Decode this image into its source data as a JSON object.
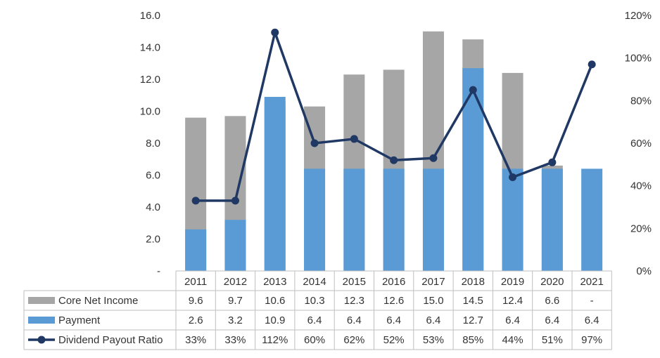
{
  "chart_data": {
    "type": "bar",
    "categories": [
      "2011",
      "2012",
      "2013",
      "2014",
      "2015",
      "2016",
      "2017",
      "2018",
      "2019",
      "2020",
      "2021"
    ],
    "series": [
      {
        "name": "Core Net Income",
        "kind": "bar",
        "color": "#a6a6a6",
        "values": [
          9.6,
          9.7,
          10.6,
          10.3,
          12.3,
          12.6,
          15.0,
          14.5,
          12.4,
          6.6,
          null
        ],
        "labels": [
          "9.6",
          "9.7",
          "10.6",
          "10.3",
          "12.3",
          "12.6",
          "15.0",
          "14.5",
          "12.4",
          "6.6",
          "-"
        ]
      },
      {
        "name": "Payment",
        "kind": "bar",
        "color": "#5b9bd5",
        "values": [
          2.6,
          3.2,
          10.9,
          6.4,
          6.4,
          6.4,
          6.4,
          12.7,
          6.4,
          6.4,
          6.4
        ],
        "labels": [
          "2.6",
          "3.2",
          "10.9",
          "6.4",
          "6.4",
          "6.4",
          "6.4",
          "12.7",
          "6.4",
          "6.4",
          "6.4"
        ]
      },
      {
        "name": "Dividend Payout Ratio",
        "kind": "line",
        "axis": "right",
        "color": "#203864",
        "values": [
          33,
          33,
          112,
          60,
          62,
          52,
          53,
          85,
          44,
          51,
          97
        ],
        "labels": [
          "33%",
          "33%",
          "112%",
          "60%",
          "62%",
          "52%",
          "53%",
          "85%",
          "44%",
          "51%",
          "97%"
        ]
      }
    ],
    "y_left": {
      "ylim": [
        0,
        16
      ],
      "ticks": [
        "-",
        "2.0",
        "4.0",
        "6.0",
        "8.0",
        "10.0",
        "12.0",
        "14.0",
        "16.0"
      ],
      "tick_values": [
        0,
        2,
        4,
        6,
        8,
        10,
        12,
        14,
        16
      ]
    },
    "y_right": {
      "ylim": [
        0,
        120
      ],
      "ticks": [
        "0%",
        "20%",
        "40%",
        "60%",
        "80%",
        "100%",
        "120%"
      ],
      "tick_values": [
        0,
        20,
        40,
        60,
        80,
        100,
        120
      ]
    },
    "title": "",
    "xlabel": "",
    "ylabel": "",
    "grid": false,
    "legend": "data-table-left",
    "overlap_bars": true
  }
}
